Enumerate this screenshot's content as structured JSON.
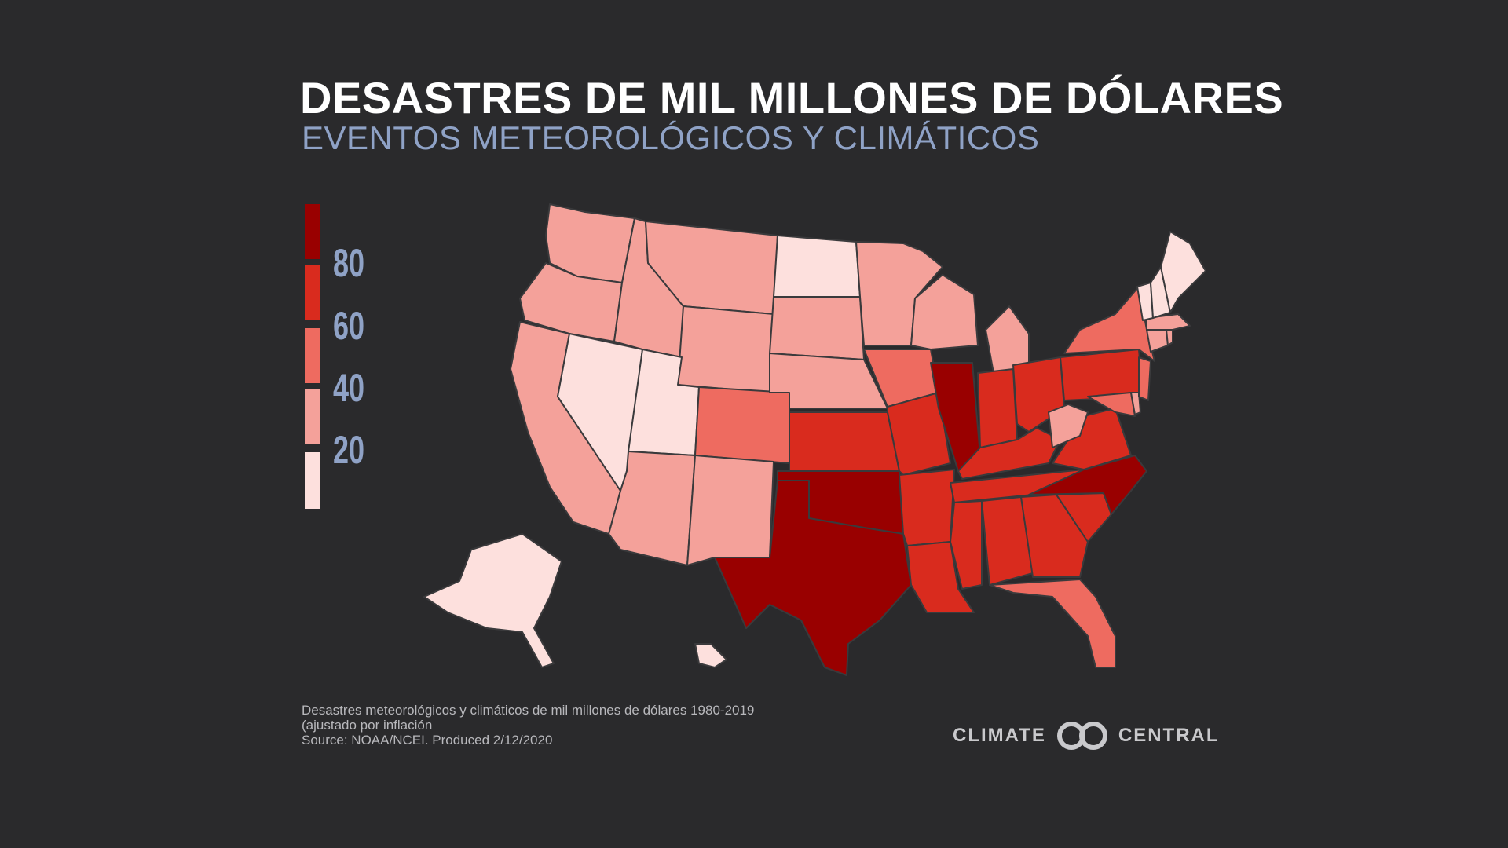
{
  "title": "DESASTRES DE MIL MILLONES DE DÓLARES",
  "subtitle": "EVENTOS METEOROLÓGICOS Y CLIMÁTICOS",
  "legend": {
    "labels": [
      "80",
      "60",
      "40",
      "20"
    ],
    "colors": [
      "#990000",
      "#d92b1e",
      "#ee6b60",
      "#f4a19a",
      "#fde0dd"
    ]
  },
  "footnote": {
    "line1": "Desastres meteorológicos y climáticos de mil millones de dólares 1980-2019",
    "line2": "(ajustado por inflación",
    "line3": "Source: NOAA/NCEI. Produced 2/12/2020"
  },
  "logo": {
    "left_word": "CLIMATE",
    "right_word": "CENTRAL"
  },
  "map": {
    "stroke": "#3a3a3c",
    "state_class": {
      "WA": 1,
      "OR": 1,
      "CA": 1,
      "ID": 1,
      "MT": 1,
      "WY": 1,
      "AZ": 1,
      "NM": 1,
      "NV": 0,
      "UT": 0,
      "ND": 0,
      "AK": 0,
      "HI": 0,
      "ME": 0,
      "NH": 0,
      "VT": 0,
      "SD": 1,
      "NE": 1,
      "MN": 1,
      "WI": 1,
      "MI": 1,
      "WV": 1,
      "MA": 1,
      "CT": 1,
      "RI": 1,
      "DE": 1,
      "CO": 2,
      "IA": 2,
      "NY": 2,
      "NJ": 2,
      "FL": 2,
      "MD": 2,
      "KS": 3,
      "MO": 3,
      "AR": 3,
      "LA": 3,
      "MS": 3,
      "AL": 3,
      "GA": 3,
      "SC": 3,
      "TN": 3,
      "KY": 3,
      "IN": 3,
      "OH": 3,
      "PA": 3,
      "VA": 3,
      "TX": 4,
      "OK": 4,
      "IL": 4,
      "NC": 4
    }
  }
}
